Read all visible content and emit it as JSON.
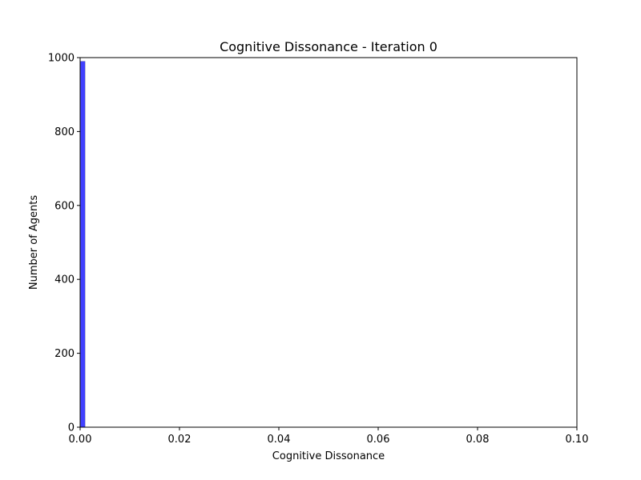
{
  "chart_data": {
    "type": "bar",
    "title": "Cognitive Dissonance - Iteration 0",
    "xlabel": "Cognitive Dissonance",
    "ylabel": "Number of Agents",
    "xlim": [
      0,
      0.1
    ],
    "ylim": [
      0,
      1000
    ],
    "xticks": [
      0,
      0.02,
      0.04,
      0.06,
      0.08,
      0.1
    ],
    "xtick_labels": [
      "0.00",
      "0.02",
      "0.04",
      "0.06",
      "0.08",
      "0.10"
    ],
    "yticks": [
      0,
      200,
      400,
      600,
      800,
      1000
    ],
    "ytick_labels": [
      "0",
      "200",
      "400",
      "600",
      "800",
      "1000"
    ],
    "bins": [
      {
        "x0": 0,
        "x1": 0.001,
        "count": 990
      }
    ],
    "bar_color": "#0000ff",
    "bar_opacity": 0.75,
    "grid": false,
    "legend": "none"
  }
}
